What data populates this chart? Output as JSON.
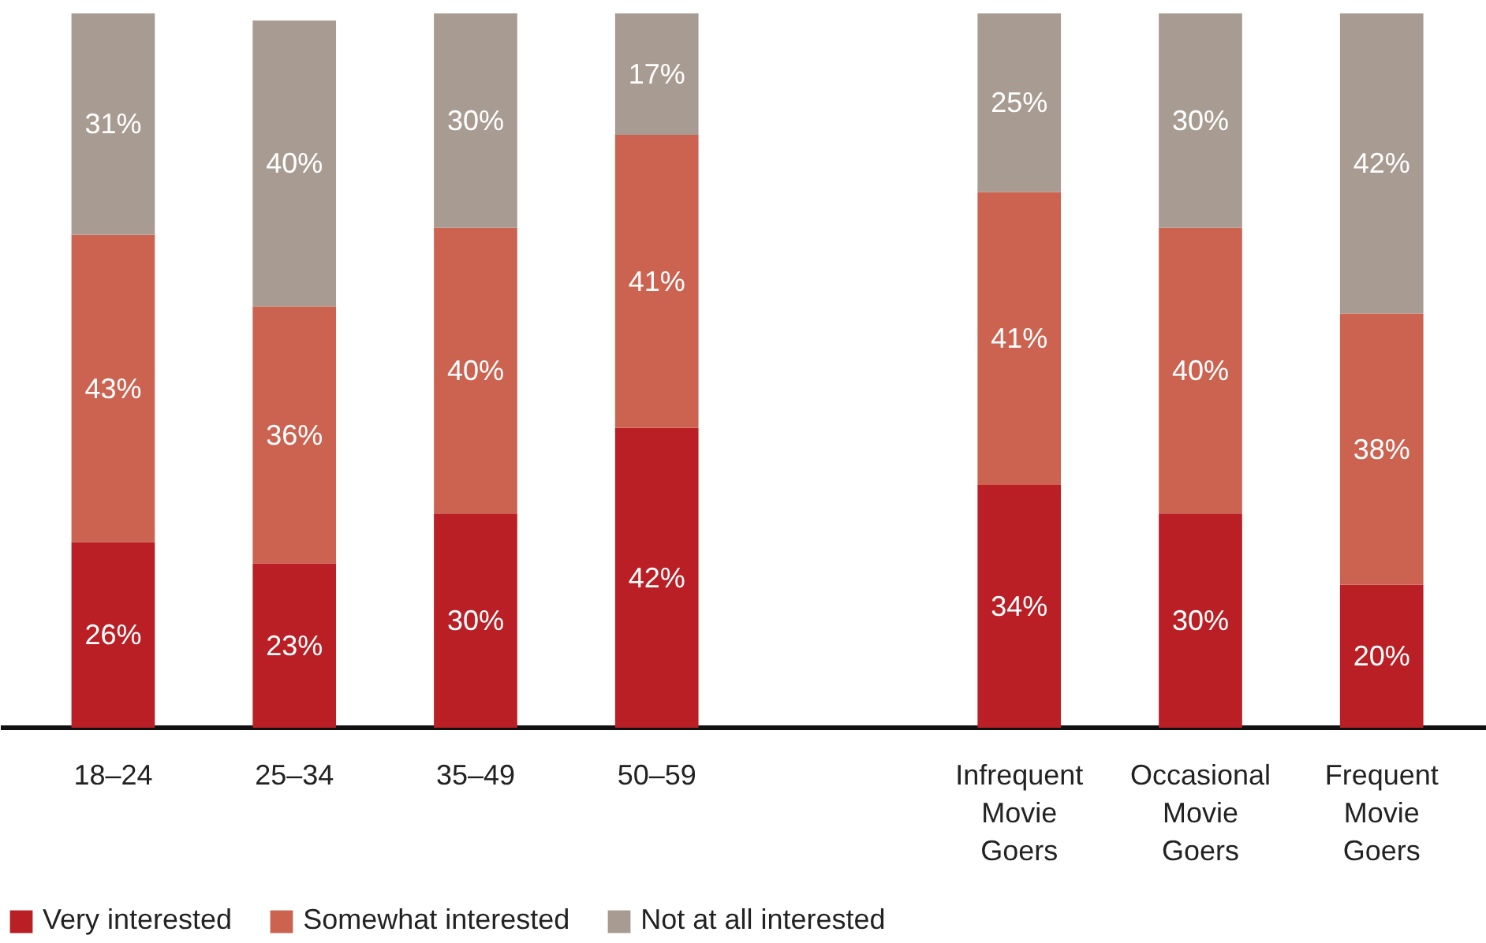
{
  "chart_data": {
    "type": "bar",
    "stacked": true,
    "legend": "bottom left",
    "categories": [
      "18–24",
      "25–34",
      "35–49",
      "50–59",
      null,
      "Infrequent Movie Goers",
      "Occasional Movie Goers",
      "Frequent Movie Goers"
    ],
    "series": [
      {
        "name": "Very interested",
        "color": "#b91f24",
        "values": [
          26,
          23,
          30,
          42,
          null,
          34,
          30,
          20
        ],
        "value_labels": [
          "26%",
          "23%",
          "30%",
          "42%",
          null,
          "34%",
          "30%",
          "20%"
        ]
      },
      {
        "name": "Somewhat interested",
        "color": "#cc6351",
        "values": [
          43,
          36,
          40,
          41,
          null,
          41,
          40,
          38
        ],
        "value_labels": [
          "43%",
          "36%",
          "40%",
          "41%",
          null,
          "41%",
          "40%",
          "38%"
        ]
      },
      {
        "name": "Not at all interested",
        "color": "#a89b92",
        "values": [
          31,
          40,
          30,
          17,
          null,
          25,
          30,
          42
        ],
        "value_labels": [
          "31%",
          "40%",
          "30%",
          "17%",
          null,
          "25%",
          "30%",
          "42%"
        ]
      }
    ]
  }
}
